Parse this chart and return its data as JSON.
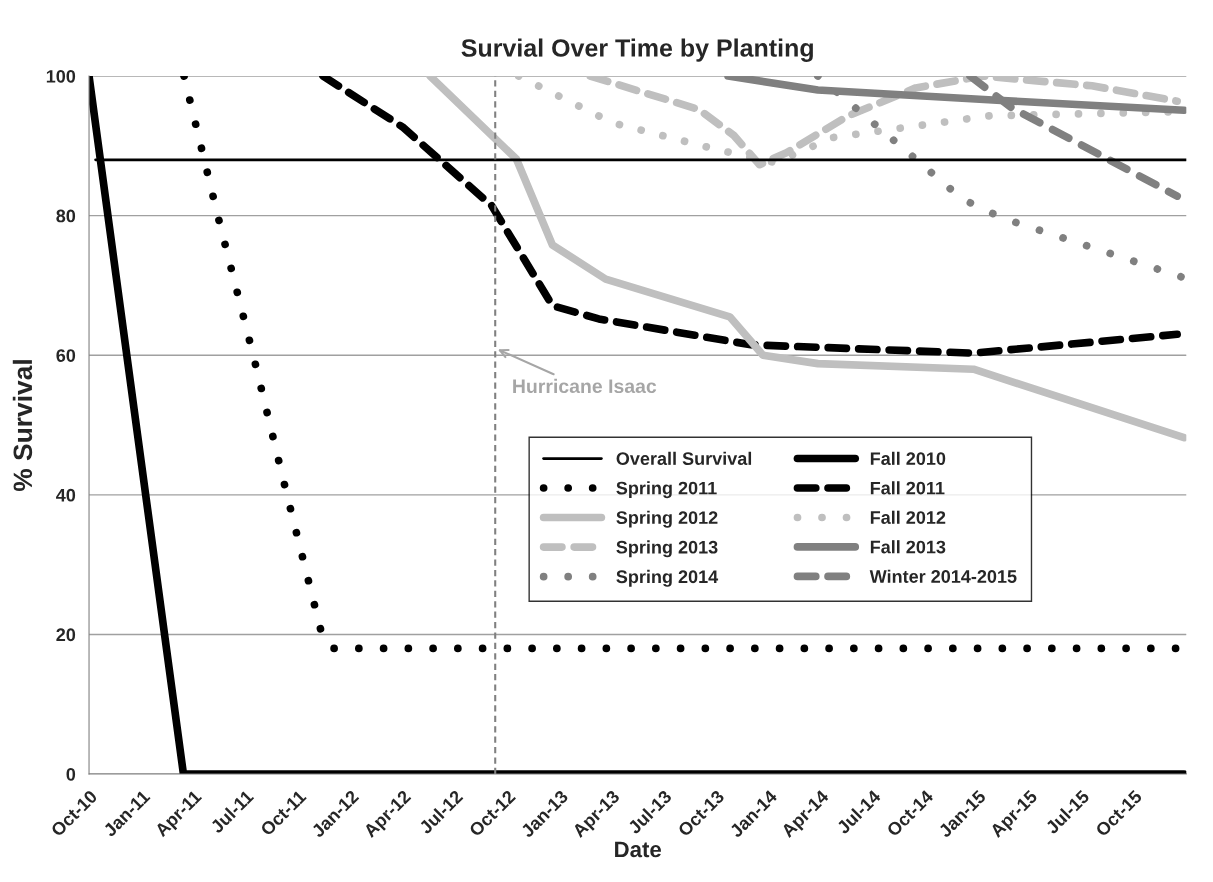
{
  "chart_data": {
    "type": "line",
    "title": "Survial Over Time by Planting",
    "xlabel": "Date",
    "ylabel": "% Survival",
    "series": [
      {
        "name": "Fall 2010",
        "color": "#000000",
        "line_style": "solid",
        "x": [
          "2010-10-01",
          "2011-03-15",
          "2015-12-28"
        ],
        "values": [
          100,
          0,
          0
        ]
      },
      {
        "name": "Spring 2011",
        "color": "#000000",
        "line_style": "dotted",
        "x": [
          "2011-03-16",
          "2011-05-14",
          "2011-07-15",
          "2011-09-12",
          "2011-11-12",
          "2011-12-02",
          "2015-12-28"
        ],
        "values": [
          100,
          80,
          60,
          40,
          20,
          18,
          18
        ]
      },
      {
        "name": "Fall 2011",
        "color": "#000000",
        "line_style": "dashed",
        "x": [
          "2011-11-14",
          "2012-04-01",
          "2012-09-04",
          "2012-12-19",
          "2013-03-10",
          "2013-12-01",
          "2014-12-25",
          "2015-12-16"
        ],
        "values": [
          100,
          92.7,
          81.4,
          67.1,
          65.2,
          61.5,
          60.3,
          63
        ]
      },
      {
        "name": "Spring 2012",
        "color": "#bfbfbf",
        "line_style": "solid",
        "x": [
          "2012-05-19",
          "2012-10-17",
          "2012-12-19",
          "2013-03-22",
          "2013-10-25",
          "2013-12-22",
          "2014-03-28",
          "2014-12-25",
          "2015-12-28"
        ],
        "values": [
          100,
          88.1,
          75.8,
          70.9,
          65.5,
          60,
          58.8,
          58,
          48.2
        ]
      },
      {
        "name": "Fall 2012",
        "color": "#bfbfbf",
        "line_style": "dotted",
        "x": [
          "2012-10-21",
          "2013-04-03",
          "2013-10-01",
          "2014-01-12",
          "2014-04-24",
          "2015-01-22",
          "2015-12-28"
        ],
        "values": [
          100,
          93.3,
          89.5,
          87.6,
          91.2,
          94.3,
          94.9
        ]
      },
      {
        "name": "Spring 2013",
        "color": "#bfbfbf",
        "line_style": "dashed",
        "x": [
          "2013-02-23",
          "2013-09-01",
          "2013-11-01",
          "2013-12-16",
          "2014-02-01",
          "2014-05-20",
          "2014-09-15",
          "2015-01-10",
          "2015-04-01",
          "2015-07-20",
          "2015-12-16"
        ],
        "values": [
          100,
          95.2,
          91.5,
          87.3,
          89,
          94.3,
          98.3,
          100,
          99.4,
          98.6,
          96.4
        ]
      },
      {
        "name": "Fall 2013",
        "color": "#808080",
        "line_style": "solid",
        "x": [
          "2013-10-22",
          "2014-03-28",
          "2015-01-20",
          "2015-12-28"
        ],
        "values": [
          100,
          98,
          96.6,
          95.1
        ]
      },
      {
        "name": "Spring 2014",
        "color": "#808080",
        "line_style": "dotted",
        "x": [
          "2014-03-28",
          "2014-08-16",
          "2014-12-05",
          "2015-02-12",
          "2015-12-28"
        ],
        "values": [
          100,
          90.2,
          82.4,
          79.7,
          71.1
        ]
      },
      {
        "name": "Winter 2014-2015",
        "color": "#808080",
        "line_style": "dashed",
        "x": [
          "2014-12-19",
          "2015-03-01",
          "2015-12-16"
        ],
        "values": [
          100,
          95.5,
          82.8
        ]
      }
    ],
    "ref_lines": [
      {
        "axis": "y",
        "value": 88,
        "label": "Overall Survival",
        "color": "#000000",
        "line_style": "solid"
      },
      {
        "axis": "x",
        "value": "2012-09-10",
        "color": "#808080",
        "line_style": "dashed"
      }
    ],
    "annotations": [
      {
        "text": "Hurricane Isaac",
        "x": "2012-09-10",
        "y": 61
      }
    ],
    "xlim": [
      "2010-10-01",
      "2016-01-01"
    ],
    "xticks": [
      {
        "value": "2010-10-01",
        "label": "Oct-10"
      },
      {
        "value": "2011-01-01",
        "label": "Jan-11"
      },
      {
        "value": "2011-04-01",
        "label": "Apr-11"
      },
      {
        "value": "2011-07-01",
        "label": "Jul-11"
      },
      {
        "value": "2011-10-01",
        "label": "Oct-11"
      },
      {
        "value": "2012-01-01",
        "label": "Jan-12"
      },
      {
        "value": "2012-04-01",
        "label": "Apr-12"
      },
      {
        "value": "2012-07-01",
        "label": "Jul-12"
      },
      {
        "value": "2012-10-01",
        "label": "Oct-12"
      },
      {
        "value": "2013-01-01",
        "label": "Jan-13"
      },
      {
        "value": "2013-04-01",
        "label": "Apr-13"
      },
      {
        "value": "2013-07-01",
        "label": "Jul-13"
      },
      {
        "value": "2013-10-01",
        "label": "Oct-13"
      },
      {
        "value": "2014-01-01",
        "label": "Jan-14"
      },
      {
        "value": "2014-04-01",
        "label": "Apr-14"
      },
      {
        "value": "2014-07-01",
        "label": "Jul-14"
      },
      {
        "value": "2014-10-01",
        "label": "Oct-14"
      },
      {
        "value": "2015-01-01",
        "label": "Jan-15"
      },
      {
        "value": "2015-04-01",
        "label": "Apr-15"
      },
      {
        "value": "2015-07-01",
        "label": "Jul-15"
      },
      {
        "value": "2015-10-01",
        "label": "Oct-15"
      }
    ],
    "ylim": [
      0,
      100
    ],
    "yticks": [
      0,
      20,
      40,
      60,
      80,
      100
    ],
    "grid": "y",
    "legend": "center right"
  }
}
